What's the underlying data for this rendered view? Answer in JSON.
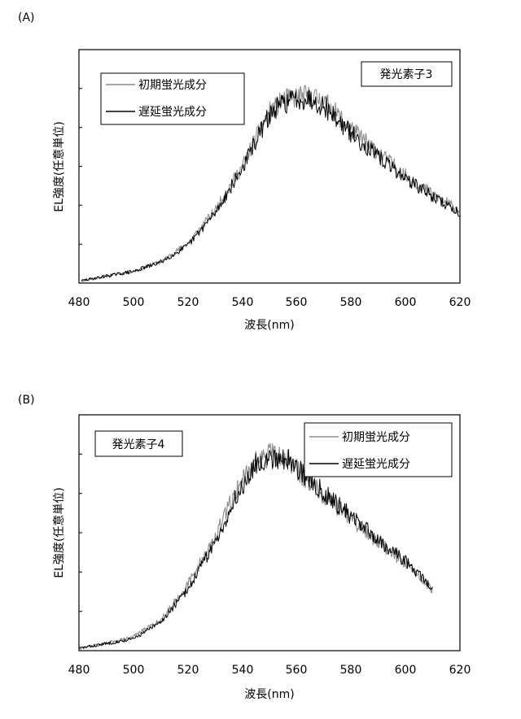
{
  "chart_data": [
    {
      "type": "line",
      "panel_label": "(A)",
      "annotation": "発光素子3",
      "xlabel": "波長(nm)",
      "ylabel": "EL強度(任意単位)",
      "xlim": [
        480,
        620
      ],
      "ylim": [
        0,
        1
      ],
      "xticks": [
        "480",
        "500",
        "520",
        "540",
        "560",
        "580",
        "600",
        "620"
      ],
      "legend_position": "top-left",
      "series": [
        {
          "name": "初期蛍光成分",
          "color": "#8c8c8c",
          "x": [
            481,
            490,
            500,
            510,
            520,
            530,
            540,
            545,
            550,
            555,
            560,
            565,
            570,
            575,
            580,
            590,
            600,
            610,
            620
          ],
          "y": [
            0.01,
            0.03,
            0.05,
            0.09,
            0.17,
            0.31,
            0.5,
            0.62,
            0.73,
            0.78,
            0.8,
            0.8,
            0.78,
            0.72,
            0.66,
            0.56,
            0.46,
            0.38,
            0.31
          ]
        },
        {
          "name": "遅延蛍光成分",
          "color": "#000000",
          "x": [
            481,
            490,
            500,
            510,
            520,
            530,
            540,
            545,
            550,
            555,
            560,
            565,
            570,
            575,
            580,
            590,
            600,
            610,
            620
          ],
          "y": [
            0.01,
            0.03,
            0.05,
            0.09,
            0.16,
            0.3,
            0.49,
            0.61,
            0.72,
            0.77,
            0.79,
            0.79,
            0.76,
            0.7,
            0.64,
            0.54,
            0.45,
            0.37,
            0.3
          ]
        }
      ]
    },
    {
      "type": "line",
      "panel_label": "(B)",
      "annotation": "発光素子4",
      "xlabel": "波長(nm)",
      "ylabel": "EL強度(任意単位)",
      "xlim": [
        480,
        620
      ],
      "ylim": [
        0,
        1
      ],
      "xticks": [
        "480",
        "500",
        "520",
        "540",
        "560",
        "580",
        "600",
        "620"
      ],
      "legend_position": "top-right",
      "series": [
        {
          "name": "初期蛍光成分",
          "color": "#8c8c8c",
          "x": [
            480,
            490,
            500,
            510,
            520,
            530,
            535,
            540,
            545,
            550,
            555,
            560,
            565,
            570,
            580,
            590,
            600,
            610
          ],
          "y": [
            0.01,
            0.03,
            0.06,
            0.13,
            0.28,
            0.48,
            0.61,
            0.73,
            0.8,
            0.83,
            0.82,
            0.77,
            0.71,
            0.66,
            0.56,
            0.46,
            0.37,
            0.26
          ]
        },
        {
          "name": "遅延蛍光成分",
          "color": "#000000",
          "x": [
            480,
            490,
            500,
            510,
            520,
            530,
            535,
            540,
            545,
            550,
            555,
            560,
            565,
            570,
            580,
            590,
            600,
            610
          ],
          "y": [
            0.01,
            0.03,
            0.05,
            0.12,
            0.26,
            0.46,
            0.58,
            0.7,
            0.79,
            0.82,
            0.82,
            0.78,
            0.72,
            0.67,
            0.57,
            0.47,
            0.38,
            0.26
          ]
        }
      ]
    }
  ]
}
